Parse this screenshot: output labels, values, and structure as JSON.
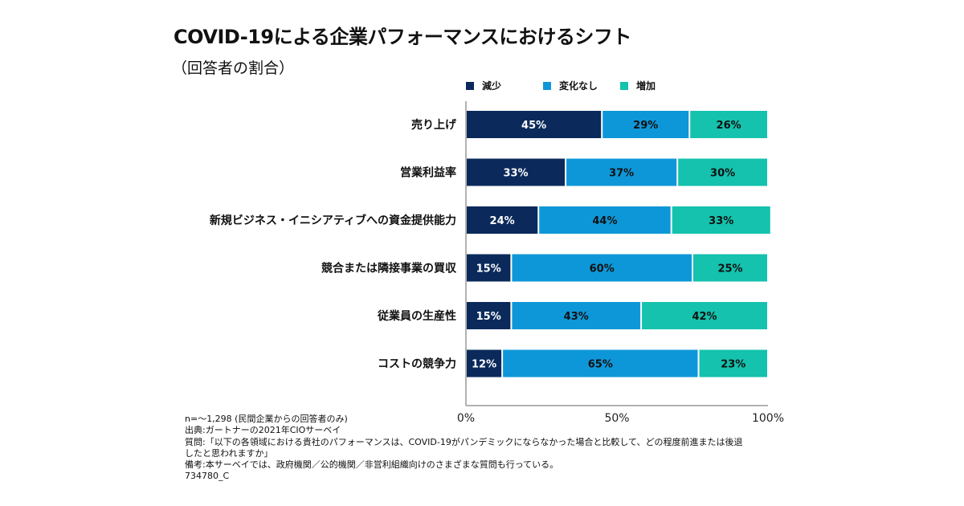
{
  "chart_data": {
    "type": "bar",
    "orientation": "horizontal",
    "stacked": true,
    "title": "COVID-19による企業パフォーマンスにおけるシフト",
    "subtitle": "（回答者の割合）",
    "categories": [
      "売り上げ",
      "営業利益率",
      "新規ビジネス・イニシアティブへの資金提供能力",
      "競合または隣接事業の買収",
      "従業員の生産性",
      "コストの競争力"
    ],
    "series": [
      {
        "name": "減少",
        "color": "#0b2a5b",
        "label_color": "#ffffff",
        "values": [
          45,
          33,
          24,
          15,
          15,
          12
        ]
      },
      {
        "name": "変化なし",
        "color": "#0e97d8",
        "label_color": "#111111",
        "values": [
          29,
          37,
          44,
          60,
          43,
          65
        ]
      },
      {
        "name": "増加",
        "color": "#14c2ad",
        "label_color": "#111111",
        "values": [
          26,
          30,
          33,
          25,
          42,
          23
        ]
      }
    ],
    "xlim": [
      0,
      100
    ],
    "xticks": [
      "0%",
      "50%",
      "100%"
    ],
    "xlabel": "",
    "ylabel": "",
    "grid": false,
    "legend_position": "top"
  },
  "notes": [
    "n=～1,298 (民間企業からの回答者のみ)",
    "出典:ガートナーの2021年CIOサーベイ",
    "質問:「以下の各領域における貴社のパフォーマンスは、COVID-19がパンデミックにならなかった場合と比較して、どの程度前進または後退",
    "したと思われますか」",
    "備考:本サーベイでは、政府機関／公的機関／非営利組織向けのさまざまな質問も行っている。",
    "734780_C"
  ]
}
